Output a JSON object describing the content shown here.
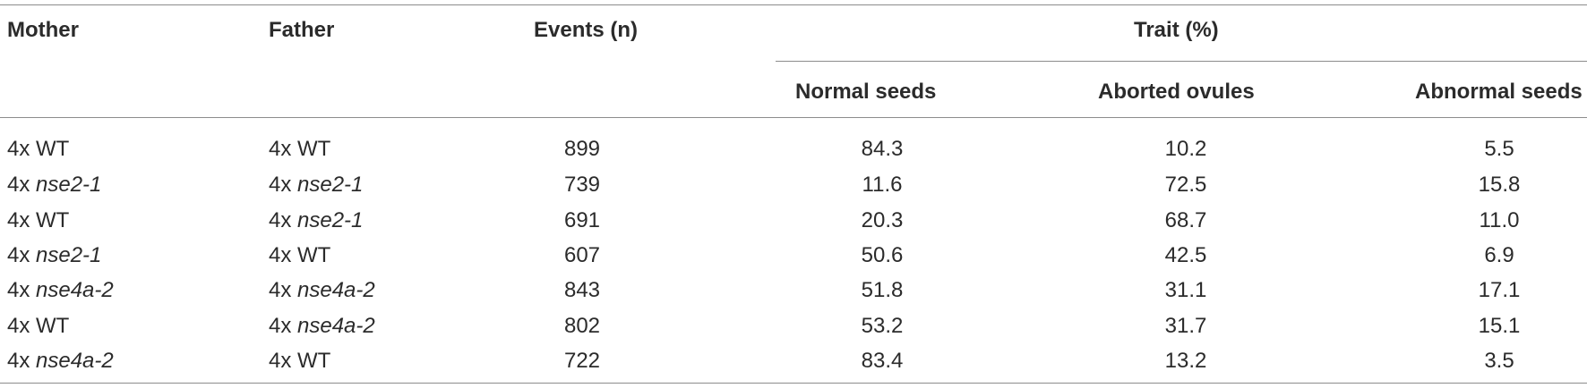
{
  "headers": {
    "mother": "Mother",
    "father": "Father",
    "events": "Events (n)",
    "trait_group": "Trait (%)",
    "normal_seeds": "Normal seeds",
    "aborted_ovules": "Aborted ovules",
    "abnormal_seeds": "Abnormal seeds"
  },
  "rows": [
    {
      "mother_prefix": "4x ",
      "mother_name": "WT",
      "mother_italic": false,
      "father_prefix": "4x ",
      "father_name": "WT",
      "father_italic": false,
      "events": "899",
      "normal": "84.3",
      "aborted": "10.2",
      "abnormal": "5.5"
    },
    {
      "mother_prefix": "4x ",
      "mother_name": "nse2-1",
      "mother_italic": true,
      "father_prefix": "4x ",
      "father_name": "nse2-1",
      "father_italic": true,
      "events": "739",
      "normal": "11.6",
      "aborted": "72.5",
      "abnormal": "15.8"
    },
    {
      "mother_prefix": "4x ",
      "mother_name": "WT",
      "mother_italic": false,
      "father_prefix": "4x ",
      "father_name": "nse2-1",
      "father_italic": true,
      "events": "691",
      "normal": "20.3",
      "aborted": "68.7",
      "abnormal": "11.0"
    },
    {
      "mother_prefix": "4x ",
      "mother_name": "nse2-1",
      "mother_italic": true,
      "father_prefix": "4x ",
      "father_name": "WT",
      "father_italic": false,
      "events": "607",
      "normal": "50.6",
      "aborted": "42.5",
      "abnormal": "6.9"
    },
    {
      "mother_prefix": "4x ",
      "mother_name": "nse4a-2",
      "mother_italic": true,
      "father_prefix": "4x ",
      "father_name": "nse4a-2",
      "father_italic": true,
      "events": "843",
      "normal": "51.8",
      "aborted": "31.1",
      "abnormal": "17.1"
    },
    {
      "mother_prefix": "4x ",
      "mother_name": "WT",
      "mother_italic": false,
      "father_prefix": "4x ",
      "father_name": "nse4a-2",
      "father_italic": true,
      "events": "802",
      "normal": "53.2",
      "aborted": "31.7",
      "abnormal": "15.1"
    },
    {
      "mother_prefix": "4x ",
      "mother_name": "nse4a-2",
      "mother_italic": true,
      "father_prefix": "4x ",
      "father_name": "WT",
      "father_italic": false,
      "events": "722",
      "normal": "83.4",
      "aborted": "13.2",
      "abnormal": "3.5"
    }
  ]
}
